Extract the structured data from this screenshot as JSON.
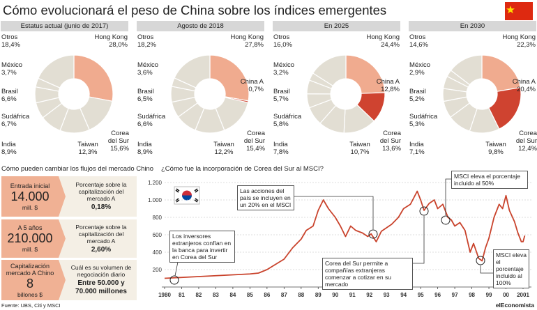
{
  "header": {
    "title": "Cómo evolucionará el peso de China sobre los índices emergentes"
  },
  "chart_data": [
    {
      "type": "pie",
      "title": "Estatus actual (junio de 2017)",
      "categories": [
        "Hong Kong",
        "Corea del Sur",
        "Taiwan",
        "India",
        "Sudáfrica",
        "Brasil",
        "México",
        "Otros"
      ],
      "values": [
        28.0,
        15.6,
        12.3,
        8.9,
        6.7,
        6.6,
        3.7,
        18.4
      ],
      "value_labels": [
        "28,0%",
        "15,6%",
        "12,3%",
        "8,9%",
        "6,7%",
        "6,6%",
        "3,7%",
        "18,4%"
      ],
      "colors": [
        "#f0ab8f",
        "#e2ded3",
        "#e2ded3",
        "#e2ded3",
        "#e2ded3",
        "#e2ded3",
        "#e2ded3",
        "#e2ded3"
      ]
    },
    {
      "type": "pie",
      "title": "Agosto de 2018",
      "categories": [
        "Hong Kong",
        "China A",
        "Corea del Sur",
        "Taiwan",
        "India",
        "Sudáfrica",
        "Brasil",
        "México",
        "Otros"
      ],
      "values": [
        27.8,
        0.7,
        15.4,
        12.2,
        8.9,
        6.6,
        6.5,
        3.6,
        18.2
      ],
      "value_labels": [
        "27,8%",
        "0,7%",
        "15,4%",
        "12,2%",
        "8,9%",
        "6,6%",
        "6,5%",
        "3,6%",
        "18,2%"
      ],
      "colors": [
        "#f0ab8f",
        "#cf4330",
        "#e2ded3",
        "#e2ded3",
        "#e2ded3",
        "#e2ded3",
        "#e2ded3",
        "#e2ded3",
        "#e2ded3"
      ]
    },
    {
      "type": "pie",
      "title": "En 2025",
      "categories": [
        "Hong Kong",
        "China A",
        "Corea del Sur",
        "Taiwan",
        "India",
        "Sudáfrica",
        "Brasil",
        "México",
        "Otros"
      ],
      "values": [
        24.4,
        12.8,
        13.6,
        10.7,
        7.8,
        5.8,
        5.7,
        3.2,
        16.0
      ],
      "value_labels": [
        "24,4%",
        "12,8%",
        "13,6%",
        "10,7%",
        "7,8%",
        "5,8%",
        "5,7%",
        "3,2%",
        "16,0%"
      ],
      "colors": [
        "#f0ab8f",
        "#cf4330",
        "#e2ded3",
        "#e2ded3",
        "#e2ded3",
        "#e2ded3",
        "#e2ded3",
        "#e2ded3",
        "#e2ded3"
      ]
    },
    {
      "type": "pie",
      "title": "En 2030",
      "categories": [
        "Hong Kong",
        "China A",
        "Corea del Sur",
        "Taiwan",
        "India",
        "Sudáfrica",
        "Brasil",
        "México",
        "Otros"
      ],
      "values": [
        22.3,
        20.4,
        12.4,
        9.8,
        7.1,
        5.3,
        5.2,
        2.9,
        14.6
      ],
      "value_labels": [
        "22,3%",
        "20,4%",
        "12,4%",
        "9,8%",
        "7,1%",
        "5,3%",
        "5,2%",
        "2,9%",
        "14,6%"
      ],
      "colors": [
        "#f0ab8f",
        "#cf4330",
        "#e2ded3",
        "#e2ded3",
        "#e2ded3",
        "#e2ded3",
        "#e2ded3",
        "#e2ded3",
        "#e2ded3"
      ]
    },
    {
      "type": "line",
      "title": "¿Cómo fue la incorporación de Corea del Sur al MSCI?",
      "color": "#c9432c",
      "grid": true,
      "x": [
        1980.0,
        1981.0,
        1982.0,
        1983.0,
        1984.0,
        1985.0,
        1985.5,
        1986.0,
        1986.5,
        1987.0,
        1987.5,
        1988.0,
        1988.3,
        1988.7,
        1989.0,
        1989.3,
        1989.6,
        1990.0,
        1990.3,
        1990.6,
        1990.9,
        1991.2,
        1991.6,
        1991.9,
        1992.1,
        1992.4,
        1992.7,
        1993.0,
        1993.3,
        1993.7,
        1994.0,
        1994.4,
        1994.8,
        1995.0,
        1995.2,
        1995.5,
        1995.8,
        1996.0,
        1996.3,
        1996.6,
        1996.8,
        1997.0,
        1997.3,
        1997.6,
        1997.9,
        1998.1,
        1998.4,
        1998.6,
        1998.8,
        1999.0,
        1999.3,
        1999.6,
        1999.8,
        2000.0,
        2000.2,
        2000.5,
        2000.7,
        2000.9,
        2001.0,
        2001.1
      ],
      "values": [
        100,
        110,
        120,
        130,
        140,
        150,
        160,
        200,
        260,
        320,
        450,
        550,
        650,
        700,
        880,
        1000,
        900,
        800,
        700,
        580,
        700,
        650,
        620,
        580,
        610,
        520,
        640,
        680,
        720,
        800,
        900,
        950,
        1100,
        1000,
        880,
        960,
        1000,
        900,
        950,
        800,
        770,
        700,
        740,
        650,
        400,
        500,
        330,
        300,
        450,
        560,
        800,
        950,
        900,
        1050,
        880,
        750,
        620,
        520,
        520,
        590
      ],
      "xlim": [
        1980,
        2001
      ],
      "xticks": [
        1980,
        {
          "value": 1981,
          "label": "81"
        },
        {
          "value": 1982,
          "label": "82"
        },
        {
          "value": 1983,
          "label": "83"
        },
        {
          "value": 1984,
          "label": "84"
        },
        {
          "value": 1985,
          "label": "85"
        },
        {
          "value": 1986,
          "label": "86"
        },
        {
          "value": 1987,
          "label": "87"
        },
        {
          "value": 1988,
          "label": "88"
        },
        {
          "value": 1989,
          "label": "89"
        },
        {
          "value": 1990,
          "label": "90"
        },
        {
          "value": 1991,
          "label": "91"
        },
        {
          "value": 1992,
          "label": "92"
        },
        {
          "value": 1993,
          "label": "93"
        },
        {
          "value": 1994,
          "label": "94"
        },
        {
          "value": 1995,
          "label": "95"
        },
        {
          "value": 1996,
          "label": "96"
        },
        {
          "value": 1997,
          "label": "97"
        },
        {
          "value": 1998,
          "label": "98"
        },
        {
          "value": 1999,
          "label": "99"
        },
        {
          "value": 2000,
          "label": "00"
        },
        2001
      ],
      "ylim": [
        0,
        1200
      ],
      "yticks": [
        200,
        400,
        600,
        800,
        {
          "value": 1000,
          "label": "1.000"
        },
        {
          "value": 1200,
          "label": "1.200"
        }
      ],
      "annotations": [
        "Los inversores extranjeros confían en la banca para invertir en Corea del Sur",
        "Las acciones del país se incluyen en un 20% en el MSCI",
        "Corea del Sur permite a compañías extranjeras comenzar a cotizar en su mercado",
        "MSCI eleva el porcentaje incluido al 50%",
        "MSCI eleva el porcentaje incluido al 100%"
      ]
    }
  ],
  "flows": {
    "title": "Cómo pueden cambiar los flujos del mercado Chino",
    "rows": [
      {
        "label": "Entrada inicial",
        "amount": "14.000",
        "unit": "mill. $",
        "metric": "Porcentaje sobre la capitalización del mercado A",
        "result": "0,18%"
      },
      {
        "label": "A 5 años",
        "amount": "210.000",
        "unit": "mill. $",
        "metric": "Porcentaje sobre la capitalización del mercado A",
        "result": "2,60%"
      },
      {
        "label": "Capitalización mercado A Chino",
        "amount": "8",
        "unit": "billones $",
        "metric": "Cuál es su volumen de negociación diario",
        "result": "Entre 50.000 y 70.000 millones"
      }
    ]
  },
  "footer": {
    "source": "Fuente: UBS, Citi y MSCI",
    "brand": "elEconomista"
  }
}
